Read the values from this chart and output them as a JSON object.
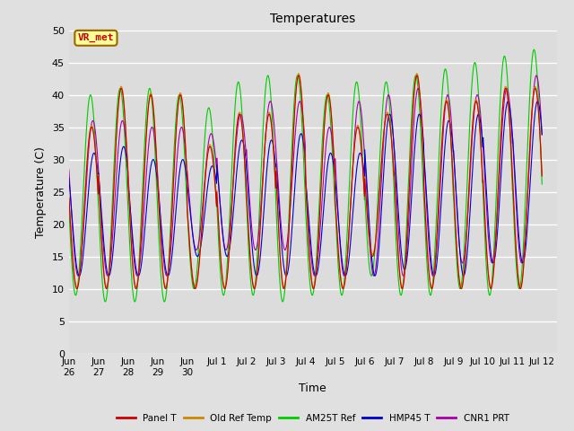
{
  "title": "Temperatures",
  "xlabel": "Time",
  "ylabel": "Temperature (C)",
  "ylim": [
    0,
    50
  ],
  "yticks": [
    0,
    5,
    10,
    15,
    20,
    25,
    30,
    35,
    40,
    45,
    50
  ],
  "bg_color": "#e0e0e0",
  "plot_bg_color": "#dcdcdc",
  "grid_color": "#ffffff",
  "annotation_text": "VR_met",
  "annotation_color": "#cc0000",
  "annotation_bg": "#ffff99",
  "annotation_border": "#996600",
  "legend_entries": [
    "Panel T",
    "Old Ref Temp",
    "AM25T Ref",
    "HMP45 T",
    "CNR1 PRT"
  ],
  "line_colors": [
    "#cc0000",
    "#cc8800",
    "#00cc00",
    "#0000cc",
    "#aa00aa"
  ],
  "tick_labels": [
    "Jun\n26",
    "Jun\n27",
    "Jun\n28",
    "Jun\n29",
    "Jun\n30",
    "Jul 1",
    "Jul 2",
    "Jul 3",
    "Jul 4",
    "Jul 5",
    "Jul 6",
    "Jul 7",
    "Jul 8",
    "Jul 9",
    "Jul 10",
    "Jul 11",
    "Jul 12"
  ],
  "panel_maxes": [
    35,
    41,
    40,
    40,
    32,
    37,
    37,
    43,
    40,
    35,
    37,
    43,
    39,
    39,
    41,
    41
  ],
  "panel_mins": [
    10,
    10,
    10,
    10,
    10,
    10,
    10,
    10,
    10,
    10,
    15,
    10,
    10,
    10,
    10,
    10
  ],
  "am25t_maxes": [
    40,
    41,
    41,
    40,
    38,
    42,
    43,
    43,
    40,
    42,
    42,
    43,
    44,
    45,
    46,
    47
  ],
  "am25t_mins": [
    9,
    8,
    8,
    8,
    10,
    9,
    9,
    8,
    9,
    9,
    12,
    9,
    9,
    10,
    9,
    10
  ],
  "hmp45_maxes": [
    31,
    32,
    30,
    30,
    29,
    33,
    33,
    34,
    31,
    31,
    37,
    37,
    36,
    37,
    39,
    39
  ],
  "hmp45_mins": [
    12,
    12,
    12,
    12,
    15,
    15,
    12,
    12,
    12,
    12,
    12,
    13,
    12,
    12,
    14,
    14
  ],
  "cnr1_maxes": [
    36,
    36,
    35,
    35,
    34,
    37,
    39,
    39,
    35,
    39,
    40,
    41,
    40,
    40,
    41,
    43
  ],
  "cnr1_mins": [
    12,
    12,
    12,
    12,
    16,
    16,
    16,
    16,
    12,
    12,
    12,
    12,
    12,
    14,
    14,
    14
  ]
}
